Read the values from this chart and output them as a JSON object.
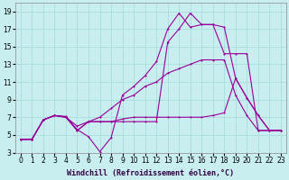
{
  "background_color": "#c8eef0",
  "grid_color": "#aadddd",
  "line_color": "#990099",
  "xlim": [
    -0.5,
    23.5
  ],
  "ylim": [
    3,
    20
  ],
  "xticks": [
    0,
    1,
    2,
    3,
    4,
    5,
    6,
    7,
    8,
    9,
    10,
    11,
    12,
    13,
    14,
    15,
    16,
    17,
    18,
    19,
    20,
    21,
    22,
    23
  ],
  "yticks": [
    3,
    5,
    7,
    9,
    11,
    13,
    15,
    17,
    19
  ],
  "xlabel": "Windchill (Refroidissement éolien,°C)",
  "lines": [
    {
      "x": [
        0,
        1,
        2,
        3,
        4,
        5,
        6,
        7,
        8,
        9,
        10,
        11,
        12,
        13,
        14,
        15,
        16,
        17,
        18,
        19,
        20,
        21,
        22,
        23
      ],
      "y": [
        4.5,
        4.5,
        6.7,
        7.2,
        7.1,
        5.6,
        4.8,
        3.1,
        4.7,
        9.5,
        10.5,
        11.7,
        13.3,
        17.0,
        18.8,
        17.2,
        17.5,
        17.5,
        17.2,
        11.4,
        9.2,
        7.2,
        5.5,
        5.5
      ]
    },
    {
      "x": [
        0,
        1,
        2,
        3,
        4,
        5,
        6,
        7,
        8,
        9,
        10,
        11,
        12,
        13,
        14,
        15,
        16,
        17,
        18,
        19,
        20,
        21,
        22,
        23
      ],
      "y": [
        4.5,
        4.5,
        6.7,
        7.2,
        7.0,
        5.5,
        6.5,
        6.5,
        6.5,
        6.5,
        6.5,
        6.5,
        6.5,
        15.5,
        17.0,
        18.8,
        17.5,
        17.5,
        14.2,
        14.2,
        14.2,
        5.5,
        5.5,
        5.5
      ]
    },
    {
      "x": [
        0,
        1,
        2,
        3,
        4,
        5,
        6,
        7,
        8,
        9,
        10,
        11,
        12,
        13,
        14,
        15,
        16,
        17,
        18,
        19,
        20,
        21,
        22,
        23
      ],
      "y": [
        4.5,
        4.5,
        6.7,
        7.2,
        7.0,
        5.5,
        6.5,
        7.0,
        8.0,
        9.0,
        9.5,
        10.5,
        11.0,
        12.0,
        12.5,
        13.0,
        13.5,
        13.5,
        13.5,
        9.5,
        7.2,
        5.5,
        5.5,
        5.5
      ]
    },
    {
      "x": [
        0,
        1,
        2,
        3,
        4,
        5,
        6,
        7,
        8,
        9,
        10,
        11,
        12,
        13,
        14,
        15,
        16,
        17,
        18,
        19,
        20,
        21,
        22,
        23
      ],
      "y": [
        4.5,
        4.5,
        6.7,
        7.2,
        7.0,
        6.0,
        6.5,
        6.5,
        6.5,
        6.8,
        7.0,
        7.0,
        7.0,
        7.0,
        7.0,
        7.0,
        7.0,
        7.2,
        7.5,
        11.4,
        9.2,
        7.2,
        5.5,
        5.5
      ]
    }
  ],
  "tick_fontsize": 5.5,
  "label_fontsize": 6.0
}
